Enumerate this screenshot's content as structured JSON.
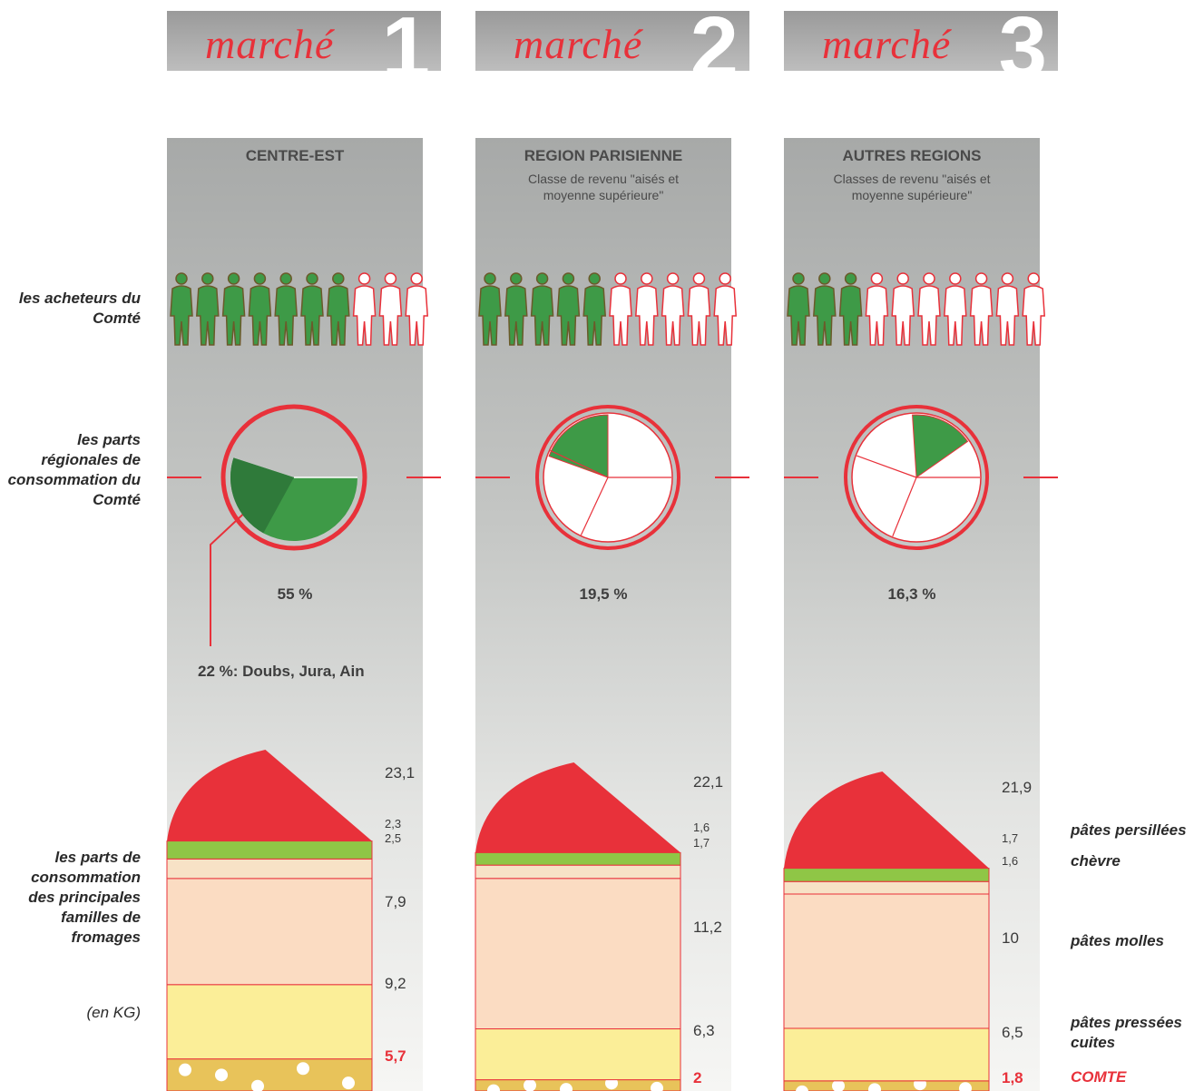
{
  "tabs": [
    {
      "word": "marché",
      "num": "1"
    },
    {
      "word": "marché",
      "num": "2"
    },
    {
      "word": "marché",
      "num": "3"
    }
  ],
  "left_labels": {
    "buyers": "les acheteurs du Comté",
    "regional_shares": "les parts régionales de consommation du Comté",
    "families": "les parts de consommation des principales familles de fromages",
    "unit": "(en KG)"
  },
  "right_labels": {
    "persillees": "pâtes persillées",
    "chevre": "chèvre",
    "molles": "pâtes molles",
    "pressees": "pâtes pressées cuites",
    "comte": "COMTE"
  },
  "colors": {
    "green": "#3e9a47",
    "dark_green": "#2f7a3a",
    "red": "#e8313a",
    "lime": "#8fc646",
    "cream": "#f7e2c6",
    "peach": "#fbdcc2",
    "yellow": "#fbee98",
    "gold": "#e8c35a"
  },
  "chart_data": [
    {
      "type": "pie",
      "title": "CENTRE-EST",
      "subtitle": "",
      "buyers_of_10": 7,
      "share_label": "55 %",
      "share": 55,
      "sub_share": 22,
      "sub_share_label": "22 %: Doubs, Jura, Ain",
      "cheese_kg": {
        "total": "23,1",
        "persillees": "2,3",
        "chevre": "2,5",
        "molles": "7,9",
        "pressees": "9,2",
        "comte": "5,7"
      },
      "cheese_values": {
        "persillees": 2.3,
        "chevre": 2.5,
        "molles": 7.9,
        "pressees": 9.2,
        "comte": 5.7
      }
    },
    {
      "type": "pie",
      "title": "REGION PARISIENNE",
      "subtitle": "Classe de revenu \"aisés et moyenne supérieure\"",
      "buyers_of_10": 5,
      "share_label": "19,5 %",
      "share": 19.5,
      "cheese_kg": {
        "total": "22,1",
        "persillees": "1,6",
        "chevre": "1,7",
        "molles": "11,2",
        "pressees": "6,3",
        "comte": "2"
      },
      "cheese_values": {
        "persillees": 1.6,
        "chevre": 1.7,
        "molles": 11.2,
        "pressees": 6.3,
        "comte": 2
      }
    },
    {
      "type": "pie",
      "title": "AUTRES REGIONS",
      "subtitle": "Classes de revenu \"aisés et moyenne supérieure\"",
      "buyers_of_10": 3,
      "share_label": "16,3 %",
      "share": 16.3,
      "cheese_kg": {
        "total": "21,9",
        "persillees": "1,7",
        "chevre": "1,6",
        "molles": "10",
        "pressees": "6,5",
        "comte": "1,8"
      },
      "cheese_values": {
        "persillees": 1.7,
        "chevre": 1.6,
        "molles": 10,
        "pressees": 6.5,
        "comte": 1.8
      }
    }
  ]
}
